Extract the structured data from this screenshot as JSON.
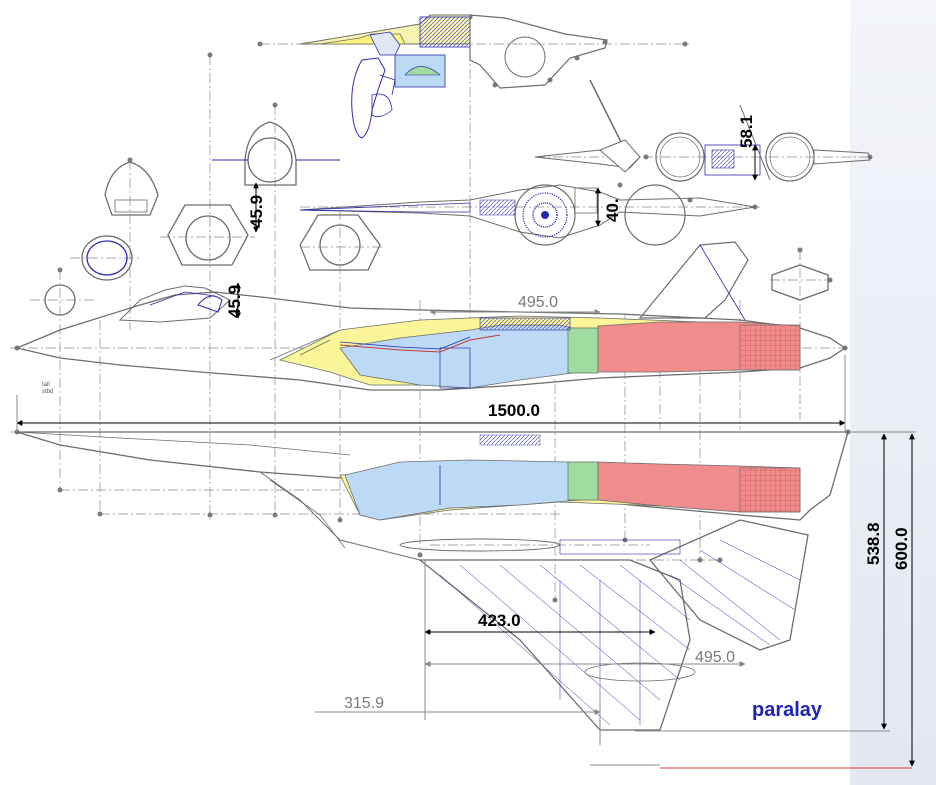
{
  "dimensions": {
    "overall_length": "1500.0",
    "upper_span": "495.0",
    "lower_span": "495.0",
    "wing_root": "423.0",
    "offset": "315.9",
    "height_inner": "538.8",
    "height_outer": "600.0",
    "canopy_height_a": "45.9",
    "canopy_height_b": "45.9",
    "nacelle_height": "40.",
    "tail_height": "58.1"
  },
  "brand": "paralay",
  "colors": {
    "intake": "#bcd9f5",
    "fuel": "#fbf59a",
    "engine": "#f08c8c",
    "turbine": "#9fdc9f",
    "outline": "#6d6d6d",
    "structure": "#2a2ab0",
    "brand": "#1f24b8"
  }
}
